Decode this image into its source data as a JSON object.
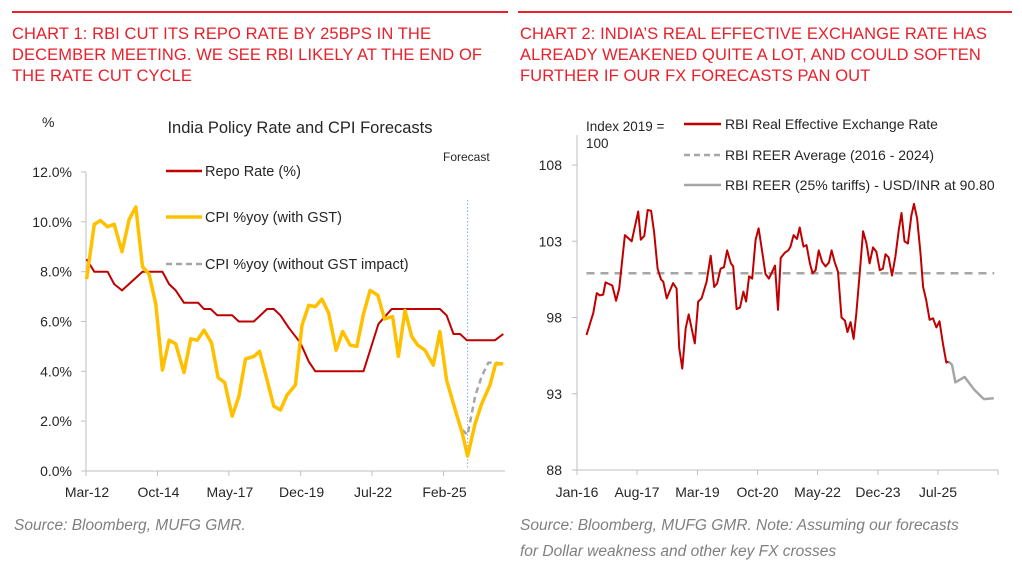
{
  "headers": [
    "CHART 1: RBI CUT ITS REPO RATE BY 25BPS IN THE DECEMBER MEETING. WE SEE RBI LIKELY AT THE END OF THE RATE CUT CYCLE",
    "CHART 2: INDIA’S REAL EFFECTIVE EXCHANGE RATE HAS ALREADY WEAKENED QUITE A LOT, AND COULD SOFTEN FURTHER IF OUR FX FORECASTS PAN OUT"
  ],
  "sources": [
    "Source: Bloomberg, MUFG GMR.",
    "Source: Bloomberg, MUFG GMR.  Note: Assuming our forecasts for Dollar weakness and other key FX crosses"
  ],
  "colors": {
    "accent": "#e8202a",
    "repo": "#c00000",
    "cpi": "#ffc000",
    "gray": "#a6a6a6",
    "reer": "#c00000"
  },
  "chart_data": [
    {
      "type": "line",
      "title": "India Policy Rate and CPI Forecasts",
      "ylabel": "%",
      "annotation": "Forecast",
      "forecast_start": 2025.95,
      "xlim": [
        2012.17,
        2027.3
      ],
      "ylim": [
        0,
        12
      ],
      "x_ticks": [
        {
          "x": 2012.17,
          "label": "Mar-12"
        },
        {
          "x": 2014.75,
          "label": "Oct-14"
        },
        {
          "x": 2017.33,
          "label": "May-17"
        },
        {
          "x": 2019.92,
          "label": "Dec-19"
        },
        {
          "x": 2022.5,
          "label": "Jul-22"
        },
        {
          "x": 2025.08,
          "label": "Feb-25"
        }
      ],
      "y_ticks": [
        {
          "y": 0,
          "label": "0.0%"
        },
        {
          "y": 2,
          "label": "2.0%"
        },
        {
          "y": 4,
          "label": "4.0%"
        },
        {
          "y": 6,
          "label": "6.0%"
        },
        {
          "y": 8,
          "label": "8.0%"
        },
        {
          "y": 10,
          "label": "10.0%"
        },
        {
          "y": 12,
          "label": "12.0%"
        }
      ],
      "legend_position": "top-center",
      "series": [
        {
          "name": "Repo Rate (%)",
          "style": "solid",
          "color": "#c00000",
          "points": [
            [
              2012.19,
              8.5
            ],
            [
              2012.47,
              8.0
            ],
            [
              2012.95,
              8.0
            ],
            [
              2013.19,
              7.5
            ],
            [
              2013.47,
              7.25
            ],
            [
              2014.21,
              8.0
            ],
            [
              2014.93,
              8.0
            ],
            [
              2015.17,
              7.5
            ],
            [
              2015.41,
              7.25
            ],
            [
              2015.71,
              6.75
            ],
            [
              2016.22,
              6.75
            ],
            [
              2016.43,
              6.5
            ],
            [
              2016.67,
              6.5
            ],
            [
              2016.91,
              6.25
            ],
            [
              2017.45,
              6.25
            ],
            [
              2017.69,
              6.0
            ],
            [
              2018.23,
              6.0
            ],
            [
              2018.71,
              6.5
            ],
            [
              2018.95,
              6.5
            ],
            [
              2019.19,
              6.25
            ],
            [
              2019.49,
              5.75
            ],
            [
              2019.91,
              5.15
            ],
            [
              2020.21,
              4.4
            ],
            [
              2020.45,
              4.0
            ],
            [
              2022.19,
              4.0
            ],
            [
              2022.73,
              5.9
            ],
            [
              2023.21,
              6.5
            ],
            [
              2024.95,
              6.5
            ],
            [
              2025.19,
              6.25
            ],
            [
              2025.44,
              5.5
            ],
            [
              2025.68,
              5.5
            ],
            [
              2025.92,
              5.25
            ],
            [
              2026.94,
              5.25
            ],
            [
              2027.24,
              5.5
            ]
          ]
        },
        {
          "name": "CPI %yoy (with GST)",
          "style": "solid",
          "color": "#ffc000",
          "points": [
            [
              2012.19,
              7.7
            ],
            [
              2012.47,
              9.9
            ],
            [
              2012.69,
              10.05
            ],
            [
              2012.95,
              9.8
            ],
            [
              2013.19,
              9.9
            ],
            [
              2013.47,
              8.8
            ],
            [
              2013.73,
              10.1
            ],
            [
              2013.97,
              10.6
            ],
            [
              2014.21,
              8.2
            ],
            [
              2014.45,
              7.9
            ],
            [
              2014.69,
              6.7
            ],
            [
              2014.93,
              4.05
            ],
            [
              2015.17,
              5.25
            ],
            [
              2015.41,
              5.1
            ],
            [
              2015.71,
              3.95
            ],
            [
              2015.95,
              5.3
            ],
            [
              2016.19,
              5.25
            ],
            [
              2016.43,
              5.65
            ],
            [
              2016.7,
              5.15
            ],
            [
              2016.94,
              3.75
            ],
            [
              2017.18,
              3.55
            ],
            [
              2017.45,
              2.2
            ],
            [
              2017.69,
              3.0
            ],
            [
              2017.93,
              4.5
            ],
            [
              2018.23,
              4.6
            ],
            [
              2018.44,
              4.8
            ],
            [
              2018.71,
              3.65
            ],
            [
              2018.95,
              2.6
            ],
            [
              2019.19,
              2.45
            ],
            [
              2019.43,
              3.05
            ],
            [
              2019.73,
              3.45
            ],
            [
              2019.97,
              5.85
            ],
            [
              2020.21,
              6.65
            ],
            [
              2020.45,
              6.6
            ],
            [
              2020.69,
              6.9
            ],
            [
              2020.93,
              6.35
            ],
            [
              2021.2,
              4.85
            ],
            [
              2021.44,
              5.6
            ],
            [
              2021.71,
              5.05
            ],
            [
              2021.95,
              5.0
            ],
            [
              2022.19,
              6.3
            ],
            [
              2022.43,
              7.25
            ],
            [
              2022.71,
              7.05
            ],
            [
              2022.95,
              6.1
            ],
            [
              2023.24,
              6.2
            ],
            [
              2023.45,
              4.6
            ],
            [
              2023.69,
              6.45
            ],
            [
              2023.93,
              5.4
            ],
            [
              2024.15,
              5.05
            ],
            [
              2024.41,
              4.85
            ],
            [
              2024.71,
              4.25
            ],
            [
              2024.95,
              5.6
            ],
            [
              2025.19,
              3.65
            ],
            [
              2025.49,
              2.5
            ],
            [
              2025.76,
              1.5
            ],
            [
              2025.95,
              0.6
            ],
            [
              2026.22,
              1.9
            ],
            [
              2026.46,
              2.7
            ],
            [
              2026.76,
              3.45
            ],
            [
              2026.96,
              4.3
            ],
            [
              2027.24,
              4.3
            ]
          ]
        },
        {
          "name": "CPI %yoy (without GST impact)",
          "style": "dashed",
          "color": "#a6a6a6",
          "points": [
            [
              2025.76,
              1.65
            ],
            [
              2025.95,
              1.45
            ],
            [
              2026.22,
              3.0
            ],
            [
              2026.46,
              3.8
            ],
            [
              2026.7,
              4.35
            ],
            [
              2026.96,
              4.35
            ],
            [
              2027.24,
              4.3
            ]
          ]
        }
      ]
    },
    {
      "type": "line",
      "ylabel": "Index 2019 = 100",
      "xlim": [
        2016.0,
        2027.08
      ],
      "ylim": [
        88,
        110
      ],
      "x_ticks": [
        {
          "x": 2016.0,
          "label": "Jan-16"
        },
        {
          "x": 2017.58,
          "label": "Aug-17"
        },
        {
          "x": 2019.17,
          "label": "Mar-19"
        },
        {
          "x": 2020.75,
          "label": "Oct-20"
        },
        {
          "x": 2022.33,
          "label": "May-22"
        },
        {
          "x": 2023.92,
          "label": "Dec-23"
        },
        {
          "x": 2025.5,
          "label": "Jul-25"
        },
        {
          "x": 2027.08,
          "label": ""
        }
      ],
      "y_ticks": [
        {
          "y": 88,
          "label": "88"
        },
        {
          "y": 93,
          "label": "93"
        },
        {
          "y": 98,
          "label": "98"
        },
        {
          "y": 103,
          "label": "103"
        },
        {
          "y": 108,
          "label": "108"
        }
      ],
      "legend_position": "top-right",
      "series": [
        {
          "name": "RBI Real Effective Exchange Rate",
          "style": "solid",
          "color": "#c00000",
          "points": [
            [
              2016.25,
              96.85
            ],
            [
              2016.43,
              98.3
            ],
            [
              2016.52,
              99.6
            ],
            [
              2016.6,
              99.45
            ],
            [
              2016.69,
              99.5
            ],
            [
              2016.75,
              100.3
            ],
            [
              2016.93,
              100.1
            ],
            [
              2017.03,
              99.1
            ],
            [
              2017.11,
              99.9
            ],
            [
              2017.26,
              103.4
            ],
            [
              2017.44,
              103.0
            ],
            [
              2017.61,
              104.95
            ],
            [
              2017.68,
              103.1
            ],
            [
              2017.77,
              103.35
            ],
            [
              2017.86,
              105.05
            ],
            [
              2017.95,
              105.0
            ],
            [
              2018.03,
              103.6
            ],
            [
              2018.12,
              101.2
            ],
            [
              2018.21,
              100.5
            ],
            [
              2018.27,
              100.35
            ],
            [
              2018.36,
              99.25
            ],
            [
              2018.45,
              99.8
            ],
            [
              2018.53,
              100.25
            ],
            [
              2018.62,
              99.9
            ],
            [
              2018.69,
              96.0
            ],
            [
              2018.77,
              94.65
            ],
            [
              2018.86,
              97.3
            ],
            [
              2018.94,
              98.2
            ],
            [
              2019.1,
              96.3
            ],
            [
              2019.19,
              99.05
            ],
            [
              2019.28,
              99.25
            ],
            [
              2019.41,
              100.35
            ],
            [
              2019.52,
              102.05
            ],
            [
              2019.61,
              100.0
            ],
            [
              2019.69,
              100.25
            ],
            [
              2019.78,
              101.2
            ],
            [
              2019.87,
              101.3
            ],
            [
              2019.95,
              102.4
            ],
            [
              2020.05,
              101.55
            ],
            [
              2020.11,
              101.35
            ],
            [
              2020.2,
              98.55
            ],
            [
              2020.29,
              98.65
            ],
            [
              2020.38,
              99.7
            ],
            [
              2020.45,
              99.05
            ],
            [
              2020.53,
              100.7
            ],
            [
              2020.61,
              100.55
            ],
            [
              2020.7,
              103.1
            ],
            [
              2020.78,
              103.85
            ],
            [
              2020.87,
              102.4
            ],
            [
              2020.96,
              100.85
            ],
            [
              2021.05,
              100.55
            ],
            [
              2021.12,
              100.9
            ],
            [
              2021.21,
              101.4
            ],
            [
              2021.29,
              98.5
            ],
            [
              2021.36,
              101.9
            ],
            [
              2021.47,
              102.25
            ],
            [
              2021.56,
              102.4
            ],
            [
              2021.62,
              102.65
            ],
            [
              2021.7,
              103.4
            ],
            [
              2021.79,
              103.15
            ],
            [
              2021.86,
              103.9
            ],
            [
              2021.96,
              102.65
            ],
            [
              2022.04,
              102.75
            ],
            [
              2022.13,
              101.55
            ],
            [
              2022.2,
              100.9
            ],
            [
              2022.28,
              101.1
            ],
            [
              2022.36,
              102.4
            ],
            [
              2022.45,
              101.65
            ],
            [
              2022.54,
              101.35
            ],
            [
              2022.63,
              101.6
            ],
            [
              2022.7,
              102.4
            ],
            [
              2022.78,
              101.65
            ],
            [
              2022.87,
              101.0
            ],
            [
              2022.96,
              98.0
            ],
            [
              2023.05,
              97.8
            ],
            [
              2023.12,
              97.05
            ],
            [
              2023.2,
              97.7
            ],
            [
              2023.28,
              96.6
            ],
            [
              2023.35,
              98.25
            ],
            [
              2023.44,
              100.9
            ],
            [
              2023.53,
              103.65
            ],
            [
              2023.62,
              102.85
            ],
            [
              2023.7,
              101.55
            ],
            [
              2023.79,
              102.6
            ],
            [
              2023.88,
              102.3
            ],
            [
              2023.97,
              101.1
            ],
            [
              2024.05,
              101.2
            ],
            [
              2024.12,
              102.15
            ],
            [
              2024.2,
              101.95
            ],
            [
              2024.29,
              100.75
            ],
            [
              2024.38,
              102.0
            ],
            [
              2024.47,
              103.75
            ],
            [
              2024.54,
              104.85
            ],
            [
              2024.62,
              103.0
            ],
            [
              2024.71,
              102.85
            ],
            [
              2024.8,
              104.7
            ],
            [
              2024.87,
              105.45
            ],
            [
              2024.95,
              104.5
            ],
            [
              2025.04,
              102.2
            ],
            [
              2025.11,
              100.0
            ],
            [
              2025.19,
              99.15
            ],
            [
              2025.28,
              97.85
            ],
            [
              2025.37,
              97.95
            ],
            [
              2025.46,
              97.35
            ],
            [
              2025.54,
              97.75
            ],
            [
              2025.63,
              96.3
            ],
            [
              2025.72,
              95.05
            ],
            [
              2025.78,
              95.1
            ]
          ]
        },
        {
          "name": "RBI REER Average (2016 - 2024)",
          "style": "dashed",
          "color": "#a6a6a6",
          "points": [
            [
              2016.25,
              100.9
            ],
            [
              2026.98,
              100.9
            ]
          ]
        },
        {
          "name": "RBI REER (25% tariffs) - USD/INR at 90.80",
          "style": "solid",
          "color": "#a6a6a6",
          "points": [
            [
              2025.78,
              95.1
            ],
            [
              2025.87,
              94.9
            ],
            [
              2025.96,
              93.75
            ],
            [
              2026.2,
              94.1
            ],
            [
              2026.46,
              93.25
            ],
            [
              2026.71,
              92.65
            ],
            [
              2026.97,
              92.7
            ]
          ]
        }
      ]
    }
  ]
}
